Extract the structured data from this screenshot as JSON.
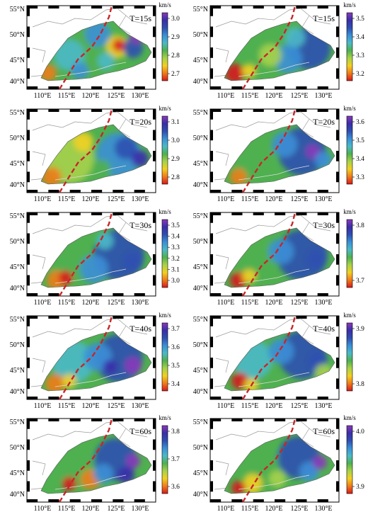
{
  "longitude_labels": [
    "110°E",
    "115°E",
    "120°E",
    "125°E",
    "130°E"
  ],
  "latitude_labels": [
    "55°N",
    "50°N",
    "45°N",
    "40°N"
  ],
  "unit_label": "km/s",
  "colormap": [
    "#d7191c",
    "#f07c1a",
    "#f2d022",
    "#a6d24a",
    "#4fb04f",
    "#4bb9c8",
    "#3b8fd6",
    "#2f4fb0",
    "#3a2ea8",
    "#8a3ab9"
  ],
  "fault_line_color": "#c8262a",
  "panels": [
    {
      "period": "T=15s",
      "colorbar_ticks": [
        "3.0",
        "2.9",
        "2.8",
        "2.7"
      ]
    },
    {
      "period": "T=15s",
      "colorbar_ticks": [
        "3.5",
        "3.4",
        "3.3",
        "3.2"
      ]
    },
    {
      "period": "T=20s",
      "colorbar_ticks": [
        "3.1",
        "3.0",
        "2.9",
        "2.8"
      ]
    },
    {
      "period": "T=20s",
      "colorbar_ticks": [
        "3.6",
        "3.5",
        "3.4",
        "3.3"
      ]
    },
    {
      "period": "T=30s",
      "colorbar_ticks": [
        "3.5",
        "3.4",
        "3.3",
        "3.2",
        "3.1",
        "3.0"
      ]
    },
    {
      "period": "T=30s",
      "colorbar_ticks": [
        "3.8",
        "3.7"
      ]
    },
    {
      "period": "T=40s",
      "colorbar_ticks": [
        "3.7",
        "3.6",
        "3.5",
        "3.4"
      ]
    },
    {
      "period": "T=40s",
      "colorbar_ticks": [
        "3.9",
        "3.8"
      ]
    },
    {
      "period": "T=60s",
      "colorbar_ticks": [
        "3.8",
        "3.7",
        "3.6"
      ]
    },
    {
      "period": "T=60s",
      "colorbar_ticks": [
        "4.0",
        "3.9"
      ]
    }
  ]
}
